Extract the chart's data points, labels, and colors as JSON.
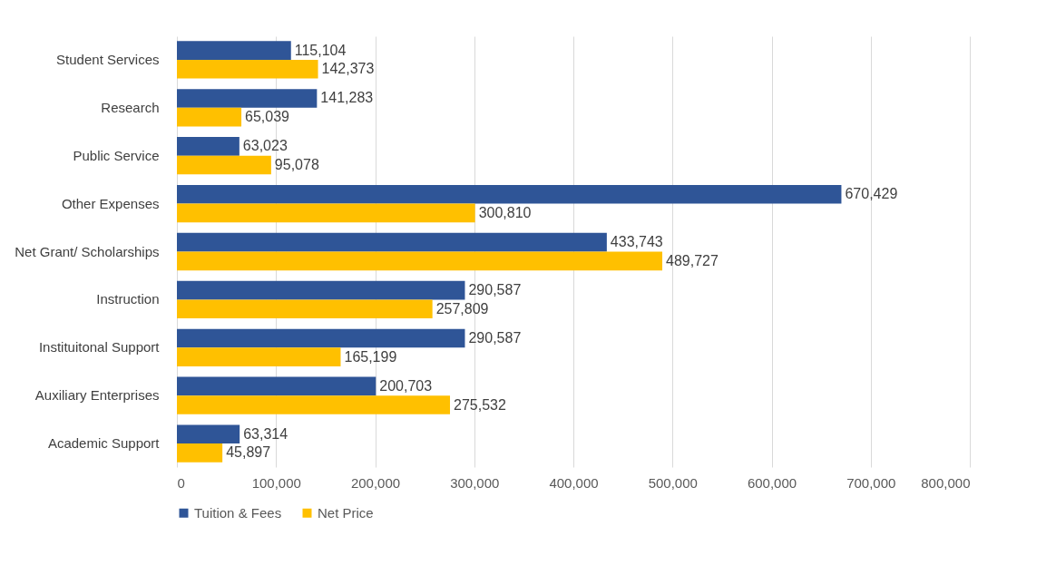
{
  "chart_data": {
    "type": "bar",
    "orientation": "horizontal",
    "categories": [
      "Student Services",
      "Research",
      "Public Service",
      "Other Expenses",
      "Net Grant/ Scholarships",
      "Instruction",
      "Instituitonal Support",
      "Auxiliary Enterprises",
      "Academic Support"
    ],
    "series": [
      {
        "name": "Tuition & Fees",
        "color": "#2f5597",
        "values": [
          115104,
          141283,
          63023,
          670429,
          433743,
          290587,
          290587,
          200703,
          63314
        ],
        "value_labels": [
          "115,104",
          "141,283",
          "63,023",
          "670,429",
          "433,743",
          "290,587",
          "290,587",
          "200,703",
          "63,314"
        ]
      },
      {
        "name": "Net Price",
        "color": "#ffc000",
        "values": [
          142373,
          65039,
          95078,
          300810,
          489727,
          257809,
          165199,
          275532,
          45897
        ],
        "value_labels": [
          "142,373",
          "65,039",
          "95,078",
          "300,810",
          "489,727",
          "257,809",
          "165,199",
          "275,532",
          "45,897"
        ]
      }
    ],
    "xlim": [
      0,
      800000
    ],
    "xticks": [
      0,
      {
        "value": 100000,
        "label": "100,000"
      },
      {
        "value": 200000,
        "label": "200,000"
      },
      {
        "value": 300000,
        "label": "300,000"
      },
      {
        "value": 400000,
        "label": "400,000"
      },
      {
        "value": 500000,
        "label": "500,000"
      },
      {
        "value": 600000,
        "label": "600,000"
      },
      {
        "value": 700000,
        "label": "700,000"
      },
      {
        "value": 800000,
        "label": "800,000"
      }
    ],
    "grid": "x",
    "legend": "bottom"
  }
}
